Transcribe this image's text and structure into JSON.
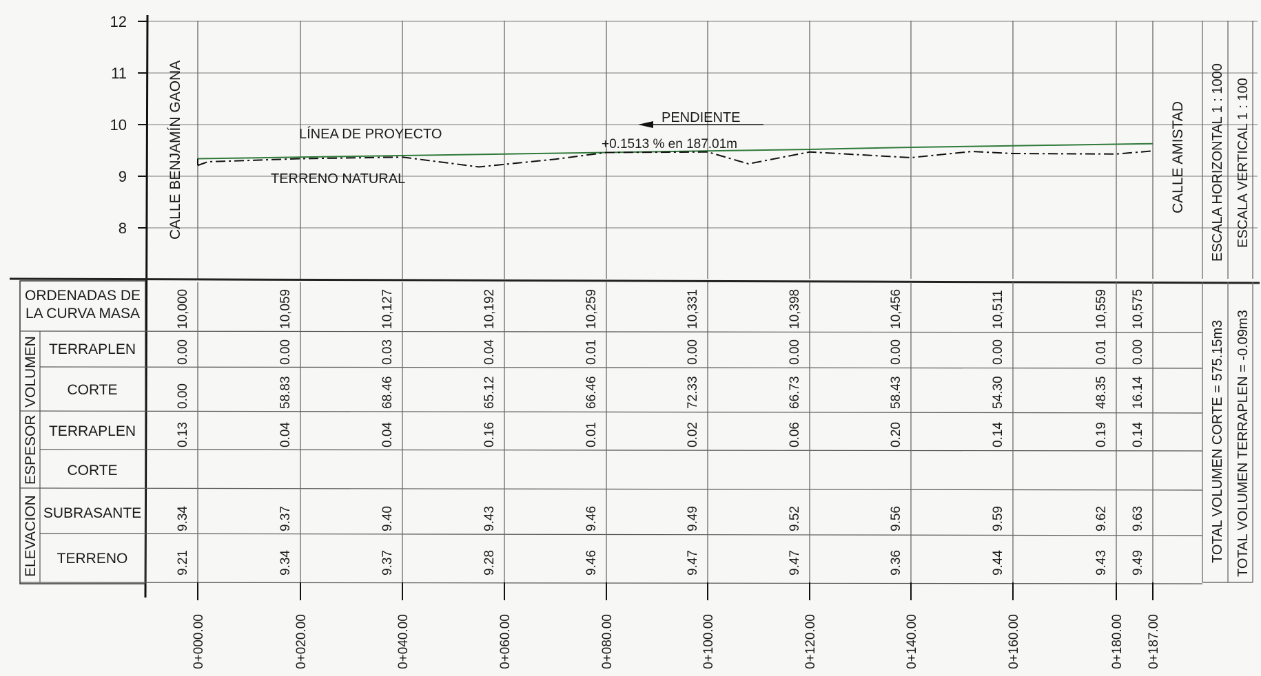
{
  "profile": {
    "y_ticks": [
      "12",
      "11",
      "10",
      "9",
      "8"
    ],
    "street_start": "CALLE BENJAMÍN GAONA",
    "street_end": "CALLE AMISTAD",
    "linea_proyecto": "LÍNEA DE PROYECTO",
    "terreno_natural": "TERRENO NATURAL",
    "pendiente_title": "PENDIENTE",
    "pendiente_value": "+0.1513 % en 187.01m",
    "escala_horizontal": "ESCALA HORIZONTAL 1 : 1000",
    "escala_vertical": "ESCALA VERTICAL 1 : 100",
    "subrasante_values": [
      9.34,
      9.37,
      9.4,
      9.43,
      9.46,
      9.49,
      9.52,
      9.56,
      9.59,
      9.62,
      9.63
    ],
    "terreno_line_points": [
      {
        "s": 0,
        "z": 9.21
      },
      {
        "s": 2,
        "z": 9.28
      },
      {
        "s": 20,
        "z": 9.34
      },
      {
        "s": 40,
        "z": 9.37
      },
      {
        "s": 55,
        "z": 9.18
      },
      {
        "s": 70,
        "z": 9.33
      },
      {
        "s": 80,
        "z": 9.46
      },
      {
        "s": 100,
        "z": 9.47
      },
      {
        "s": 108,
        "z": 9.24
      },
      {
        "s": 120,
        "z": 9.47
      },
      {
        "s": 140,
        "z": 9.36
      },
      {
        "s": 152,
        "z": 9.48
      },
      {
        "s": 160,
        "z": 9.44
      },
      {
        "s": 180,
        "z": 9.43
      },
      {
        "s": 187,
        "z": 9.49
      }
    ]
  },
  "table": {
    "ordenadas_label_1": "ORDENADAS DE",
    "ordenadas_label_2": "LA CURVA MASA",
    "group_volumen": "VOLUMEN",
    "group_espesor": "ESPESOR",
    "group_elevacion": "ELEVACION",
    "row_terraplen": "TERRAPLEN",
    "row_corte": "CORTE",
    "row_subrasante": "SUBRASANTE",
    "row_terreno": "TERRENO",
    "total_corte": "TOTAL VOLUMEN CORTE = 575.15m3",
    "total_terraplen": "TOTAL VOLUMEN TERRAPLEN = -0.09m3"
  },
  "stations": [
    {
      "label": "0+000.00",
      "ordenada": "10,000",
      "vol_terraplen": "0.00",
      "vol_corte": "0.00",
      "esp_terraplen": "0.13",
      "esp_corte": "",
      "subrasante": "9.34",
      "terreno": "9.21"
    },
    {
      "label": "0+020.00",
      "ordenada": "10,059",
      "vol_terraplen": "0.00",
      "vol_corte": "58.83",
      "esp_terraplen": "0.04",
      "esp_corte": "",
      "subrasante": "9.37",
      "terreno": "9.34"
    },
    {
      "label": "0+040.00",
      "ordenada": "10,127",
      "vol_terraplen": "0.03",
      "vol_corte": "68.46",
      "esp_terraplen": "0.04",
      "esp_corte": "",
      "subrasante": "9.40",
      "terreno": "9.37"
    },
    {
      "label": "0+060.00",
      "ordenada": "10,192",
      "vol_terraplen": "0.04",
      "vol_corte": "65.12",
      "esp_terraplen": "0.16",
      "esp_corte": "",
      "subrasante": "9.43",
      "terreno": "9.28"
    },
    {
      "label": "0+080.00",
      "ordenada": "10,259",
      "vol_terraplen": "0.01",
      "vol_corte": "66.46",
      "esp_terraplen": "0.01",
      "esp_corte": "",
      "subrasante": "9.46",
      "terreno": "9.46"
    },
    {
      "label": "0+100.00",
      "ordenada": "10,331",
      "vol_terraplen": "0.00",
      "vol_corte": "72.33",
      "esp_terraplen": "0.02",
      "esp_corte": "",
      "subrasante": "9.49",
      "terreno": "9.47"
    },
    {
      "label": "0+120.00",
      "ordenada": "10,398",
      "vol_terraplen": "0.00",
      "vol_corte": "66.73",
      "esp_terraplen": "0.06",
      "esp_corte": "",
      "subrasante": "9.52",
      "terreno": "9.47"
    },
    {
      "label": "0+140.00",
      "ordenada": "10,456",
      "vol_terraplen": "0.00",
      "vol_corte": "58.43",
      "esp_terraplen": "0.20",
      "esp_corte": "",
      "subrasante": "9.56",
      "terreno": "9.36"
    },
    {
      "label": "0+160.00",
      "ordenada": "10,511",
      "vol_terraplen": "0.00",
      "vol_corte": "54.30",
      "esp_terraplen": "0.14",
      "esp_corte": "",
      "subrasante": "9.59",
      "terreno": "9.44"
    },
    {
      "label": "0+180.00",
      "ordenada": "10,559",
      "vol_terraplen": "0.01",
      "vol_corte": "48.35",
      "esp_terraplen": "0.19",
      "esp_corte": "",
      "subrasante": "9.62",
      "terreno": "9.43"
    },
    {
      "label": "0+187.00",
      "ordenada": "10,575",
      "vol_terraplen": "0.00",
      "vol_corte": "16.14",
      "esp_terraplen": "0.14",
      "esp_corte": "",
      "subrasante": "9.63",
      "terreno": "9.49"
    }
  ]
}
